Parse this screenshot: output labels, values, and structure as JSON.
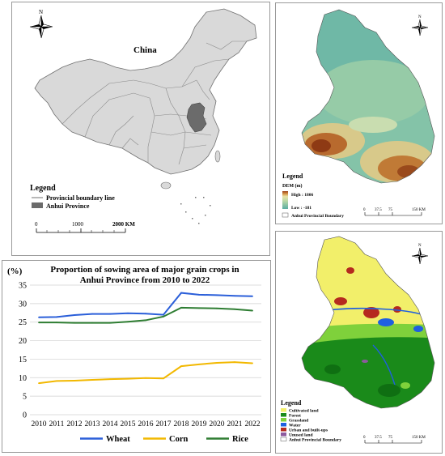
{
  "north_symbol": "N",
  "china_map": {
    "country_label": "China",
    "legend_title": "Legend",
    "legend_items": [
      "Provincial boundary line",
      "Anhui Province"
    ],
    "scale_ticks": [
      "0",
      "1000",
      "2000 KM"
    ],
    "colors": {
      "land": "#d9d9d9",
      "anhui": "#6b6b6b",
      "boundary": "#707070"
    }
  },
  "dem_map": {
    "legend_title": "Legend",
    "dem_title": "DEM (m)",
    "high_label": "High : 1806",
    "low_label": "Low : -181",
    "boundary_label": "Anhui Provincial Boundary",
    "scale_ticks": [
      "0",
      "37.5",
      "75",
      "150 KM"
    ],
    "colors": {
      "low": "#5aaea3",
      "mid": "#e8e2a6",
      "high": "#9a3f16"
    }
  },
  "landuse_map": {
    "legend_title": "Legend",
    "classes": [
      {
        "label": "Cultivated land",
        "color": "#f2ef6a"
      },
      {
        "label": "Forest",
        "color": "#1a8a1a"
      },
      {
        "label": "Grassland",
        "color": "#7fd13b"
      },
      {
        "label": "Water",
        "color": "#1f5fe0"
      },
      {
        "label": "Urban and built-ups",
        "color": "#b52a1f"
      },
      {
        "label": "Unused land",
        "color": "#8d5a9e"
      }
    ],
    "boundary_label": "Anhui Provincial Boundary",
    "scale_ticks": [
      "0",
      "37.5",
      "75",
      "150 KM"
    ]
  },
  "chart_data": {
    "type": "line",
    "title": "Proportion of sowing area of major grain crops in Anhui Province from 2010 to 2022",
    "title_lines": [
      "Proportion of sowing area of major grain crops in",
      "Anhui Province from 2010 to 2022"
    ],
    "ylabel": "(%)",
    "xlabel": "",
    "x": [
      "2010",
      "2011",
      "2012",
      "2013",
      "2014",
      "2015",
      "2016",
      "2017",
      "2018",
      "2019",
      "2020",
      "2021",
      "2022"
    ],
    "ylim": [
      0,
      35
    ],
    "yticks": [
      0,
      5,
      10,
      15,
      20,
      25,
      30,
      35
    ],
    "grid": true,
    "legend_position": "bottom",
    "series": [
      {
        "name": "Wheat",
        "color": "#2b5fd9",
        "values": [
          26.3,
          26.4,
          26.9,
          27.2,
          27.2,
          27.4,
          27.3,
          27.0,
          32.9,
          32.4,
          32.3,
          32.1,
          32.0
        ]
      },
      {
        "name": "Corn",
        "color": "#f2b800",
        "values": [
          8.5,
          9.1,
          9.2,
          9.4,
          9.6,
          9.7,
          9.9,
          9.8,
          13.1,
          13.6,
          14.0,
          14.2,
          13.9
        ]
      },
      {
        "name": "Rice",
        "color": "#2e7d32",
        "values": [
          24.9,
          24.9,
          24.8,
          24.8,
          24.8,
          25.1,
          25.5,
          26.5,
          28.9,
          28.8,
          28.7,
          28.5,
          28.1
        ]
      }
    ]
  }
}
